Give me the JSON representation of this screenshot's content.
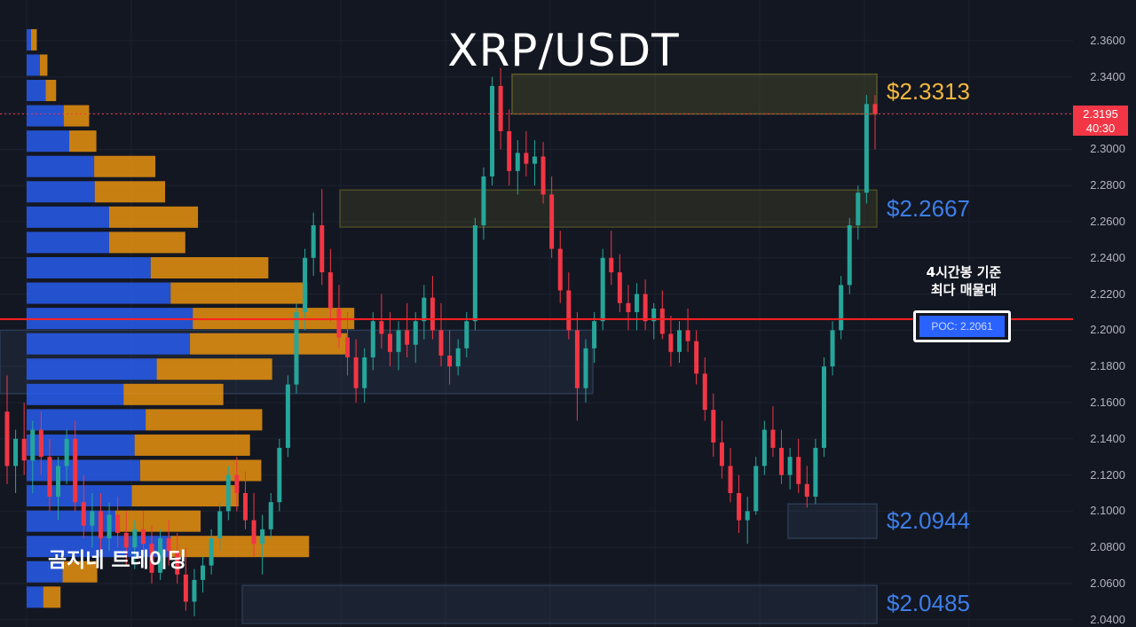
{
  "chart_data": {
    "type": "candlestick",
    "title": "XRP/USDT",
    "watermark": "곰지네 트레이딩",
    "y_ticks": [
      "2.3600",
      "2.3400",
      "2.3200",
      "2.3000",
      "2.2800",
      "2.2600",
      "2.2400",
      "2.2200",
      "2.2000",
      "2.1800",
      "2.1600",
      "2.1400",
      "2.1200",
      "2.1000",
      "2.0800",
      "2.0600",
      "2.0400"
    ],
    "ylim": [
      2.036,
      2.3825
    ],
    "current_price": {
      "label": "2.3195",
      "countdown": "40:30",
      "value": 2.3195,
      "color": "#f23645"
    },
    "levels": [
      {
        "label": "$2.3313",
        "value": 2.3313,
        "color": "#f5b83d"
      },
      {
        "label": "$2.2667",
        "value": 2.2667,
        "color": "#3d7ee8"
      },
      {
        "label": "$2.0944",
        "value": 2.0944,
        "color": "#3d7ee8"
      },
      {
        "label": "$2.0485",
        "value": 2.0485,
        "color": "#3d7ee8"
      }
    ],
    "zones": [
      {
        "low": 2.3195,
        "high": 2.3415,
        "color": "#5a5a28"
      },
      {
        "low": 2.257,
        "high": 2.2775,
        "color": "#4a4a25"
      },
      {
        "low": 2.165,
        "high": 2.2,
        "color": "#2a3a52"
      },
      {
        "low": 2.085,
        "high": 2.104,
        "color": "#2a3a52"
      },
      {
        "low": 2.038,
        "high": 2.059,
        "color": "#2a3a52"
      }
    ],
    "poc": {
      "note_line1": "4시간봉 기준",
      "note_line2": "최다 매물대",
      "label": "POC: 2.2061",
      "value": 2.2061
    },
    "volume_profile": [
      {
        "price": 2.3605,
        "buy": 0.016,
        "sell": 0.01
      },
      {
        "price": 2.3465,
        "buy": 0.048,
        "sell": 0.013
      },
      {
        "price": 2.3325,
        "buy": 0.069,
        "sell": 0.018
      },
      {
        "price": 2.3185,
        "buy": 0.134,
        "sell": 0.044
      },
      {
        "price": 2.3045,
        "buy": 0.154,
        "sell": 0.047
      },
      {
        "price": 2.2905,
        "buy": 0.244,
        "sell": 0.106
      },
      {
        "price": 2.2765,
        "buy": 0.246,
        "sell": 0.122
      },
      {
        "price": 2.2625,
        "buy": 0.298,
        "sell": 0.154
      },
      {
        "price": 2.2485,
        "buy": 0.298,
        "sell": 0.132
      },
      {
        "price": 2.2345,
        "buy": 0.448,
        "sell": 0.204
      },
      {
        "price": 2.2205,
        "buy": 0.52,
        "sell": 0.237
      },
      {
        "price": 2.2065,
        "buy": 0.6,
        "sell": 0.28
      },
      {
        "price": 2.1925,
        "buy": 0.59,
        "sell": 0.272
      },
      {
        "price": 2.1785,
        "buy": 0.47,
        "sell": 0.2
      },
      {
        "price": 2.1645,
        "buy": 0.35,
        "sell": 0.173
      },
      {
        "price": 2.1505,
        "buy": 0.43,
        "sell": 0.202
      },
      {
        "price": 2.1365,
        "buy": 0.39,
        "sell": 0.2
      },
      {
        "price": 2.1225,
        "buy": 0.41,
        "sell": 0.21
      },
      {
        "price": 2.1085,
        "buy": 0.38,
        "sell": 0.185
      },
      {
        "price": 2.0945,
        "buy": 0.32,
        "sell": 0.148
      },
      {
        "price": 2.0805,
        "buy": 0.52,
        "sell": 0.24
      },
      {
        "price": 2.0665,
        "buy": 0.13,
        "sell": 0.06
      },
      {
        "price": 2.0525,
        "buy": 0.06,
        "sell": 0.03
      }
    ],
    "candles": [
      [
        2.155,
        2.175,
        2.115,
        2.125
      ],
      [
        2.125,
        2.145,
        2.11,
        2.14
      ],
      [
        2.14,
        2.16,
        2.12,
        2.128
      ],
      [
        2.128,
        2.15,
        2.11,
        2.145
      ],
      [
        2.145,
        2.155,
        2.12,
        2.13
      ],
      [
        2.13,
        2.14,
        2.1,
        2.108
      ],
      [
        2.108,
        2.13,
        2.095,
        2.125
      ],
      [
        2.125,
        2.145,
        2.115,
        2.14
      ],
      [
        2.14,
        2.15,
        2.1,
        2.105
      ],
      [
        2.105,
        2.12,
        2.085,
        2.092
      ],
      [
        2.092,
        2.11,
        2.08,
        2.1
      ],
      [
        2.1,
        2.11,
        2.075,
        2.085
      ],
      [
        2.085,
        2.105,
        2.078,
        2.098
      ],
      [
        2.098,
        2.108,
        2.08,
        2.088
      ],
      [
        2.088,
        2.1,
        2.07,
        2.08
      ],
      [
        2.08,
        2.095,
        2.068,
        2.09
      ],
      [
        2.09,
        2.1,
        2.075,
        2.082
      ],
      [
        2.082,
        2.092,
        2.06,
        2.066
      ],
      [
        2.066,
        2.09,
        2.062,
        2.085
      ],
      [
        2.085,
        2.095,
        2.07,
        2.078
      ],
      [
        2.078,
        2.088,
        2.06,
        2.065
      ],
      [
        2.065,
        2.08,
        2.045,
        2.05
      ],
      [
        2.05,
        2.068,
        2.042,
        2.062
      ],
      [
        2.062,
        2.075,
        2.055,
        2.07
      ],
      [
        2.07,
        2.09,
        2.065,
        2.085
      ],
      [
        2.085,
        2.105,
        2.078,
        2.1
      ],
      [
        2.1,
        2.125,
        2.095,
        2.12
      ],
      [
        2.12,
        2.13,
        2.1,
        2.11
      ],
      [
        2.11,
        2.122,
        2.09,
        2.095
      ],
      [
        2.095,
        2.11,
        2.075,
        2.082
      ],
      [
        2.082,
        2.098,
        2.065,
        2.09
      ],
      [
        2.09,
        2.11,
        2.085,
        2.105
      ],
      [
        2.105,
        2.14,
        2.1,
        2.135
      ],
      [
        2.135,
        2.175,
        2.13,
        2.17
      ],
      [
        2.17,
        2.215,
        2.165,
        2.21
      ],
      [
        2.21,
        2.245,
        2.2,
        2.24
      ],
      [
        2.24,
        2.265,
        2.23,
        2.258
      ],
      [
        2.258,
        2.278,
        2.225,
        2.232
      ],
      [
        2.232,
        2.245,
        2.205,
        2.212
      ],
      [
        2.212,
        2.225,
        2.19,
        2.196
      ],
      [
        2.196,
        2.21,
        2.175,
        2.185
      ],
      [
        2.185,
        2.195,
        2.16,
        2.168
      ],
      [
        2.168,
        2.19,
        2.16,
        2.185
      ],
      [
        2.185,
        2.21,
        2.178,
        2.205
      ],
      [
        2.205,
        2.22,
        2.19,
        2.198
      ],
      [
        2.198,
        2.21,
        2.18,
        2.188
      ],
      [
        2.188,
        2.205,
        2.178,
        2.2
      ],
      [
        2.2,
        2.215,
        2.185,
        2.192
      ],
      [
        2.192,
        2.21,
        2.182,
        2.205
      ],
      [
        2.205,
        2.225,
        2.195,
        2.218
      ],
      [
        2.218,
        2.23,
        2.195,
        2.2
      ],
      [
        2.2,
        2.215,
        2.18,
        2.186
      ],
      [
        2.186,
        2.2,
        2.17,
        2.18
      ],
      [
        2.18,
        2.195,
        2.175,
        2.19
      ],
      [
        2.19,
        2.21,
        2.185,
        2.205
      ],
      [
        2.205,
        2.262,
        2.2,
        2.258
      ],
      [
        2.258,
        2.29,
        2.25,
        2.285
      ],
      [
        2.285,
        2.34,
        2.28,
        2.335
      ],
      [
        2.335,
        2.345,
        2.3,
        2.31
      ],
      [
        2.31,
        2.322,
        2.28,
        2.288
      ],
      [
        2.288,
        2.305,
        2.275,
        2.298
      ],
      [
        2.298,
        2.31,
        2.285,
        2.292
      ],
      [
        2.292,
        2.305,
        2.28,
        2.296
      ],
      [
        2.296,
        2.304,
        2.27,
        2.275
      ],
      [
        2.275,
        2.285,
        2.24,
        2.245
      ],
      [
        2.245,
        2.255,
        2.215,
        2.222
      ],
      [
        2.222,
        2.232,
        2.195,
        2.2
      ],
      [
        2.2,
        2.21,
        2.15,
        2.168
      ],
      [
        2.168,
        2.195,
        2.16,
        2.19
      ],
      [
        2.19,
        2.21,
        2.182,
        2.205
      ],
      [
        2.205,
        2.245,
        2.2,
        2.24
      ],
      [
        2.24,
        2.255,
        2.225,
        2.232
      ],
      [
        2.232,
        2.242,
        2.21,
        2.215
      ],
      [
        2.215,
        2.225,
        2.2,
        2.21
      ],
      [
        2.21,
        2.226,
        2.2,
        2.22
      ],
      [
        2.22,
        2.228,
        2.2,
        2.205
      ],
      [
        2.205,
        2.215,
        2.195,
        2.212
      ],
      [
        2.212,
        2.222,
        2.195,
        2.198
      ],
      [
        2.198,
        2.208,
        2.18,
        2.188
      ],
      [
        2.188,
        2.205,
        2.182,
        2.2
      ],
      [
        2.2,
        2.212,
        2.188,
        2.194
      ],
      [
        2.194,
        2.2,
        2.17,
        2.176
      ],
      [
        2.176,
        2.185,
        2.15,
        2.156
      ],
      [
        2.156,
        2.165,
        2.13,
        2.138
      ],
      [
        2.138,
        2.15,
        2.118,
        2.125
      ],
      [
        2.125,
        2.135,
        2.105,
        2.11
      ],
      [
        2.11,
        2.12,
        2.088,
        2.095
      ],
      [
        2.095,
        2.108,
        2.082,
        2.1
      ],
      [
        2.1,
        2.13,
        2.098,
        2.125
      ],
      [
        2.125,
        2.15,
        2.12,
        2.145
      ],
      [
        2.145,
        2.158,
        2.13,
        2.135
      ],
      [
        2.135,
        2.145,
        2.115,
        2.12
      ],
      [
        2.12,
        2.135,
        2.112,
        2.13
      ],
      [
        2.13,
        2.14,
        2.11,
        2.115
      ],
      [
        2.115,
        2.125,
        2.102,
        2.108
      ],
      [
        2.108,
        2.14,
        2.104,
        2.135
      ],
      [
        2.135,
        2.185,
        2.13,
        2.18
      ],
      [
        2.18,
        2.205,
        2.175,
        2.2
      ],
      [
        2.2,
        2.23,
        2.195,
        2.225
      ],
      [
        2.225,
        2.262,
        2.22,
        2.258
      ],
      [
        2.258,
        2.28,
        2.25,
        2.276
      ],
      [
        2.276,
        2.33,
        2.27,
        2.325
      ],
      [
        2.325,
        2.33,
        2.3,
        2.3195
      ]
    ]
  }
}
